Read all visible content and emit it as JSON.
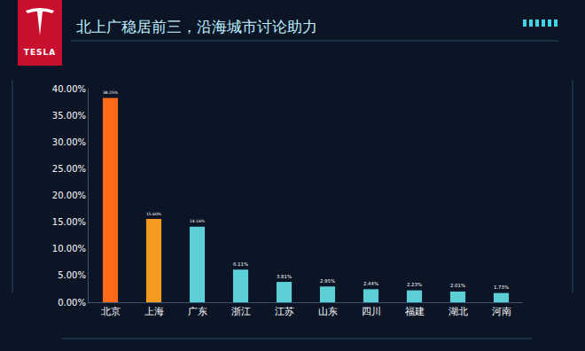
{
  "logo_text": "TESLA",
  "chart_data": {
    "type": "bar",
    "title": "北上广稳居前三，沿海城市讨论助力",
    "categories": [
      "北京",
      "上海",
      "广东",
      "浙江",
      "江苏",
      "山东",
      "四川",
      "福建",
      "湖北",
      "河南"
    ],
    "values": [
      38.25,
      15.6,
      14.16,
      6.11,
      3.81,
      2.95,
      2.44,
      2.23,
      2.01,
      1.73
    ],
    "value_labels": [
      "38.25%",
      "15.60%",
      "14.16%",
      "6.11%",
      "3.81%",
      "2.95%",
      "2.44%",
      "2.23%",
      "2.01%",
      "1.73%"
    ],
    "colors": [
      "#ff6a1a",
      "#f59a1f",
      "#5ccfd6",
      "#5ccfd6",
      "#5ccfd6",
      "#5ccfd6",
      "#5ccfd6",
      "#5ccfd6",
      "#5ccfd6",
      "#5ccfd6"
    ],
    "data_labels": true,
    "grid": false,
    "ylim": [
      0,
      40
    ],
    "yticks": [
      {
        "value": 0,
        "label": "0.00%"
      },
      {
        "value": 5,
        "label": "5.00%"
      },
      {
        "value": 10,
        "label": "10.00%"
      },
      {
        "value": 15,
        "label": "15.00%"
      },
      {
        "value": 20,
        "label": "20.00%"
      },
      {
        "value": 25,
        "label": "25.00%"
      },
      {
        "value": 30,
        "label": "30.00%"
      },
      {
        "value": 35,
        "label": "35.00%"
      },
      {
        "value": 40,
        "label": "40.00%"
      }
    ]
  }
}
